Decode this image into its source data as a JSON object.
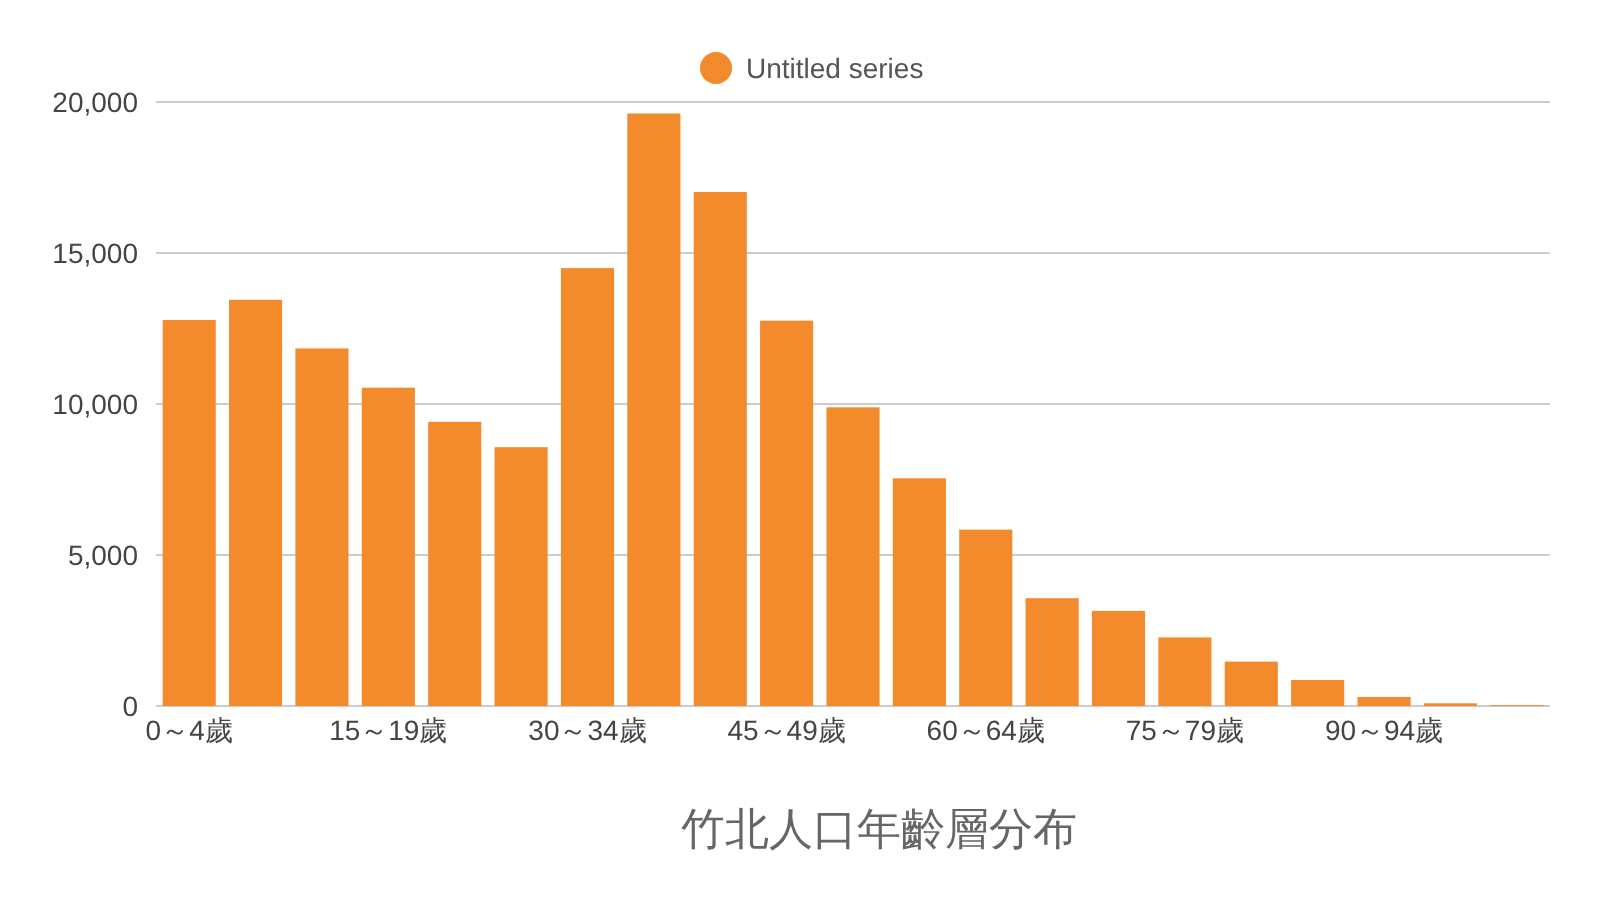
{
  "chart_data": {
    "type": "bar",
    "title": "竹北人口年齡層分布",
    "categories": [
      "0～4歲",
      null,
      null,
      "15～19歲",
      null,
      null,
      "30～34歲",
      null,
      null,
      "45～49歲",
      null,
      null,
      "60～64歲",
      null,
      null,
      "75～79歲",
      null,
      null,
      "90～94歲",
      null,
      null
    ],
    "series": [
      {
        "name": "Untitled series",
        "color": "#f38b2d",
        "values": [
          12780,
          13450,
          11840,
          10540,
          9410,
          8570,
          14500,
          19620,
          17020,
          12760,
          9890,
          7540,
          5840,
          3570,
          3150,
          2270,
          1470,
          860,
          300,
          90,
          30
        ]
      }
    ],
    "ylim": [
      0,
      20000
    ],
    "yticks": [
      {
        "value": 0,
        "label": "0"
      },
      {
        "value": 5000,
        "label": "5,000"
      },
      {
        "value": 10000,
        "label": "10,000"
      },
      {
        "value": 15000,
        "label": "15,000"
      },
      {
        "value": 20000,
        "label": "20,000"
      }
    ],
    "grid": "y",
    "legend": "top"
  }
}
